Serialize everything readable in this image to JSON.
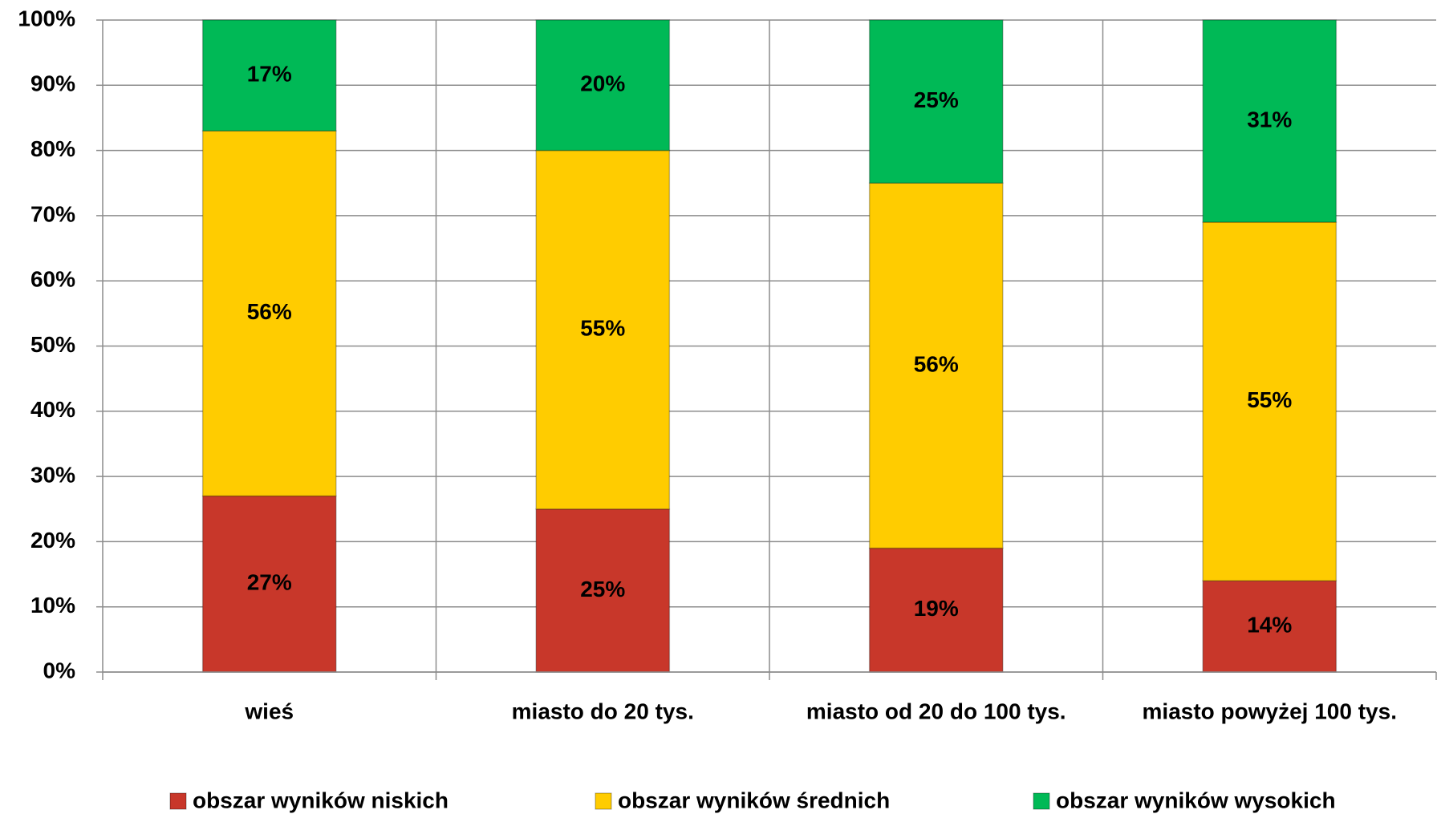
{
  "chart_data": {
    "type": "stacked_bar",
    "categories": [
      "wieś",
      "miasto do 20 tys.",
      "miasto od 20 do 100 tys.",
      "miasto powyżej 100 tys."
    ],
    "series": [
      {
        "name": "obszar wyników niskich",
        "color": "#c8372a",
        "values": [
          27,
          25,
          19,
          14
        ],
        "value_labels": [
          "27%",
          "25%",
          "19%",
          "14%"
        ]
      },
      {
        "name": "obszar wyników średnich",
        "color": "#ffcc00",
        "values": [
          56,
          55,
          56,
          55
        ],
        "value_labels": [
          "56%",
          "55%",
          "56%",
          "55%"
        ]
      },
      {
        "name": "obszar wyników wysokich",
        "color": "#00b956",
        "values": [
          17,
          20,
          25,
          31
        ],
        "value_labels": [
          "17%",
          "20%",
          "25%",
          "31%"
        ]
      }
    ],
    "ylim": [
      0,
      100
    ],
    "yticks": [
      {
        "value": 0,
        "label": "0%"
      },
      {
        "value": 10,
        "label": "10%"
      },
      {
        "value": 20,
        "label": "20%"
      },
      {
        "value": 30,
        "label": "30%"
      },
      {
        "value": 40,
        "label": "40%"
      },
      {
        "value": 50,
        "label": "50%"
      },
      {
        "value": 60,
        "label": "60%"
      },
      {
        "value": 70,
        "label": "70%"
      },
      {
        "value": 80,
        "label": "80%"
      },
      {
        "value": 90,
        "label": "90%"
      },
      {
        "value": 100,
        "label": "100%"
      }
    ],
    "grid": true,
    "legend": "bottom"
  }
}
